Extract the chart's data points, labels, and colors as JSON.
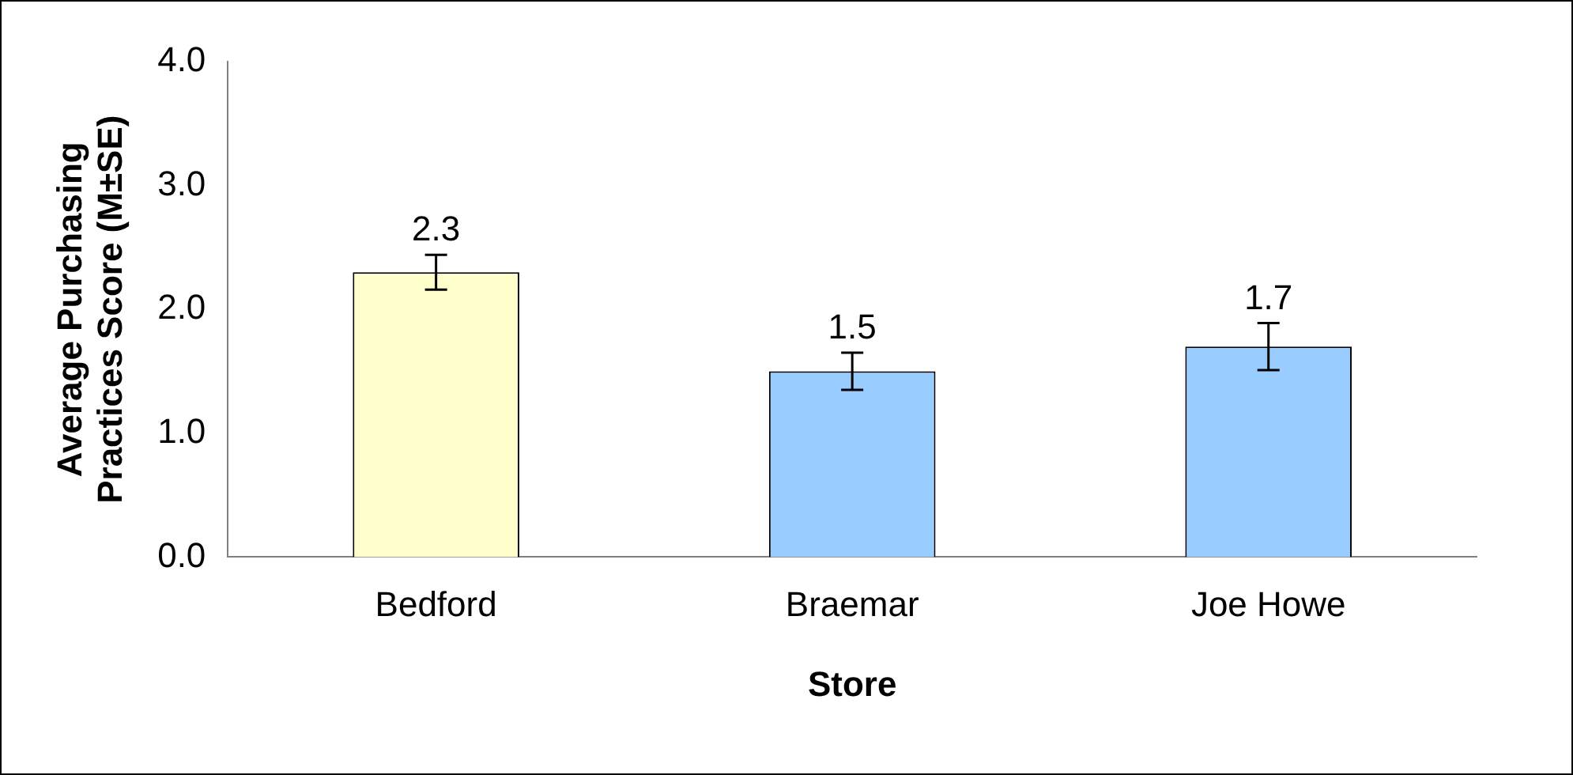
{
  "chart_data": {
    "type": "bar",
    "xlabel": "Store",
    "ylabel": "Average Purchasing Practices Score (M±SE)",
    "categories": [
      "Bedford",
      "Braemar",
      "Joe Howe"
    ],
    "values": [
      2.3,
      1.5,
      1.7
    ],
    "colors": [
      "#ffffcc",
      "#99ccff",
      "#99ccff"
    ],
    "errors": [
      0.14,
      0.15,
      0.19
    ],
    "ylim": [
      0,
      4
    ],
    "yticks": [
      {
        "value": 0,
        "label": "0.0"
      },
      {
        "value": 1,
        "label": "1.0"
      },
      {
        "value": 2,
        "label": "2.0"
      },
      {
        "value": 3,
        "label": "3.0"
      },
      {
        "value": 4,
        "label": "4.0"
      }
    ],
    "data_labels": true,
    "grid": false,
    "legend": false
  }
}
